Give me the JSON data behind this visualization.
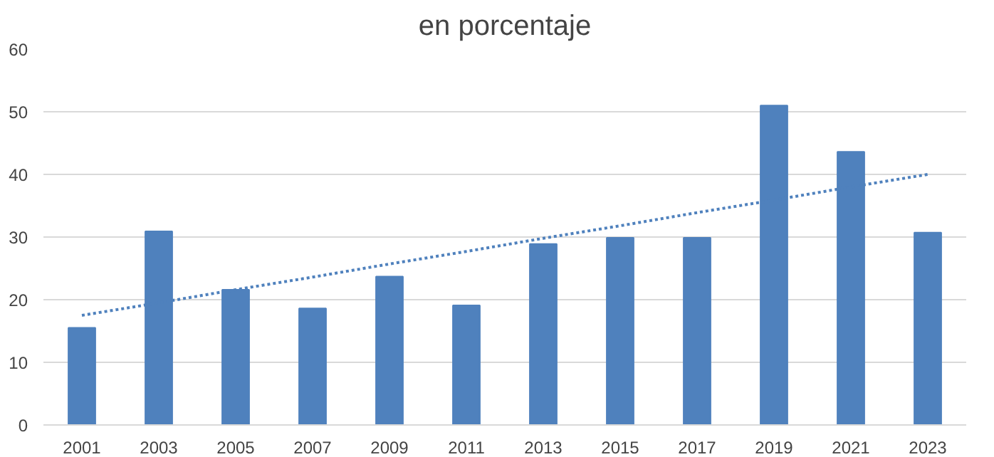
{
  "chart_data": {
    "type": "bar",
    "title": "en porcentaje",
    "categories": [
      "2001",
      "2003",
      "2005",
      "2007",
      "2009",
      "2011",
      "2013",
      "2015",
      "2017",
      "2019",
      "2021",
      "2023"
    ],
    "series": [
      {
        "color": "#4f81bd",
        "values": [
          15.5,
          30.9,
          21.6,
          18.6,
          23.7,
          19.1,
          28.9,
          29.9,
          29.9,
          51,
          43.6,
          30.7
        ]
      },
      {
        "type": "line",
        "color": "#4f81bd",
        "line_style": "dotted",
        "values": [
          17.5,
          19.5,
          21.6,
          23.6,
          25.7,
          27.7,
          29.8,
          31.8,
          33.9,
          35.9,
          38,
          40
        ]
      }
    ],
    "ylim": [
      0,
      60
    ],
    "yticks": [
      0,
      10,
      20,
      30,
      40,
      50,
      60
    ],
    "grid": "y"
  }
}
